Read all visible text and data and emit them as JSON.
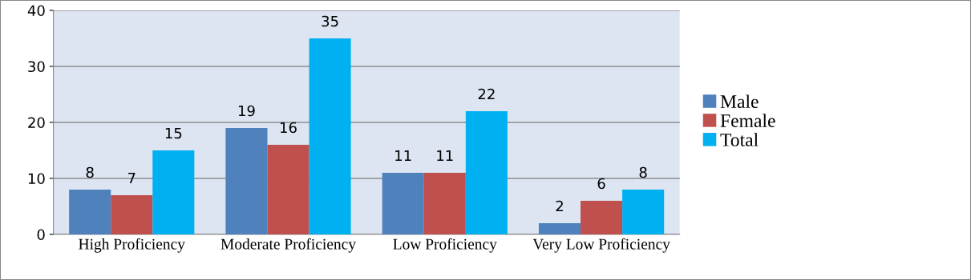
{
  "chart_data": {
    "type": "bar",
    "categories": [
      "High Proficiency",
      "Moderate Proficiency",
      "Low Proficiency",
      "Very Low Proficiency"
    ],
    "series": [
      {
        "name": "Male",
        "color": "#4f81bd",
        "values": [
          8,
          19,
          11,
          2
        ]
      },
      {
        "name": "Female",
        "color": "#c0504d",
        "values": [
          7,
          16,
          11,
          6
        ]
      },
      {
        "name": "Total",
        "color": "#00b0f0",
        "values": [
          15,
          35,
          22,
          8
        ]
      }
    ],
    "ylim": [
      0,
      40
    ],
    "yticks": [
      0,
      10,
      20,
      30,
      40
    ],
    "grid": "y",
    "legend": "right",
    "data_labels": true
  }
}
